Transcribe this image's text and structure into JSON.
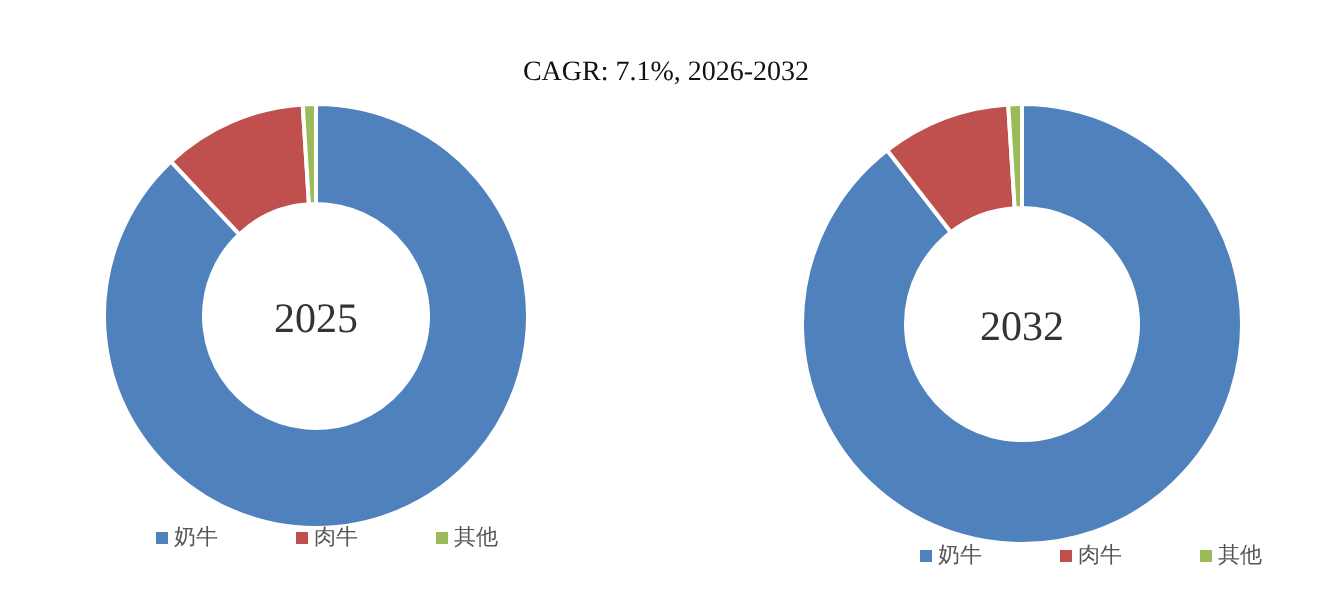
{
  "chart_data": [
    {
      "type": "donut",
      "title": "2025",
      "annotations": [
        "CAGR:  7.1%, 2026-2032"
      ],
      "categories": [
        "奶牛",
        "肉牛",
        "其他"
      ],
      "values": [
        88,
        11,
        1
      ],
      "colors": [
        "#4f81bd",
        "#c0504d",
        "#9bbb59"
      ],
      "legend": "bottom"
    },
    {
      "type": "donut",
      "title": "2032",
      "categories": [
        "奶牛",
        "肉牛",
        "其他"
      ],
      "values": [
        89.5,
        9.5,
        1
      ],
      "colors": [
        "#4f81bd",
        "#c0504d",
        "#9bbb59"
      ],
      "legend": "bottom"
    }
  ]
}
